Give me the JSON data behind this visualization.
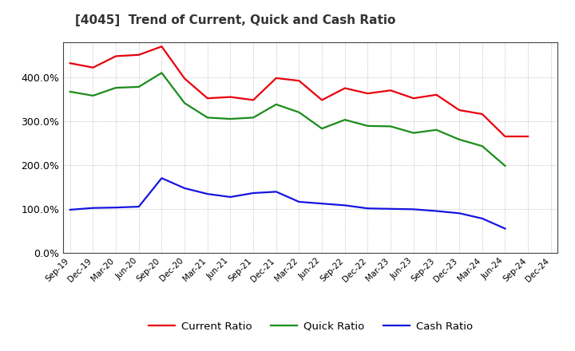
{
  "title": "[4045]  Trend of Current, Quick and Cash Ratio",
  "x_labels": [
    "Sep-19",
    "Dec-19",
    "Mar-20",
    "Jun-20",
    "Sep-20",
    "Dec-20",
    "Mar-21",
    "Jun-21",
    "Sep-21",
    "Dec-21",
    "Mar-22",
    "Jun-22",
    "Sep-22",
    "Dec-22",
    "Mar-23",
    "Jun-23",
    "Sep-23",
    "Dec-23",
    "Mar-24",
    "Jun-24",
    "Sep-24",
    "Dec-24"
  ],
  "current_ratio": [
    432,
    422,
    448,
    451,
    470,
    397,
    352,
    355,
    348,
    398,
    392,
    348,
    375,
    363,
    370,
    352,
    360,
    325,
    316,
    265,
    265,
    null
  ],
  "quick_ratio": [
    367,
    358,
    376,
    378,
    410,
    341,
    308,
    305,
    308,
    338,
    320,
    283,
    303,
    289,
    288,
    273,
    280,
    258,
    243,
    198,
    null,
    null
  ],
  "cash_ratio": [
    98,
    102,
    103,
    105,
    170,
    147,
    134,
    127,
    136,
    139,
    116,
    112,
    108,
    101,
    100,
    99,
    95,
    90,
    78,
    55,
    null,
    null
  ],
  "current_color": "#e8000d",
  "quick_color": "#1a8c1a",
  "cash_color": "#1515e0",
  "ylim": [
    0,
    480
  ],
  "yticks": [
    0,
    100,
    200,
    300,
    400
  ],
  "ytick_labels": [
    "0.0%",
    "100.0%",
    "200.0%",
    "300.0%",
    "400.0%"
  ],
  "figsize": [
    7.2,
    4.4
  ],
  "dpi": 100,
  "background_color": "#ffffff",
  "plot_background": "#ffffff",
  "grid_color": "#999999",
  "legend_labels": [
    "Current Ratio",
    "Quick Ratio",
    "Cash Ratio"
  ],
  "line_width": 1.6
}
